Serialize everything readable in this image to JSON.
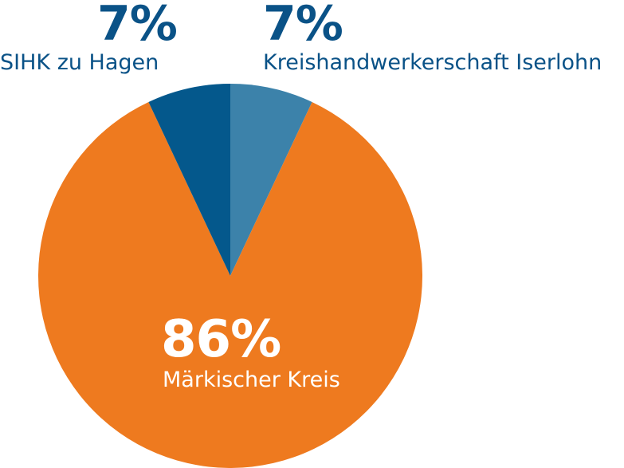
{
  "chart_data": {
    "type": "pie",
    "slices": [
      {
        "label": "Kreishandwerkerschaft Iserlohn",
        "value": 7,
        "value_label": "7%",
        "color": "#3c82aa"
      },
      {
        "label": "Märkischer Kreis",
        "value": 86,
        "value_label": "86%",
        "color": "#ee7a1f"
      },
      {
        "label": "SIHK zu Hagen",
        "value": 7,
        "value_label": "7%",
        "color": "#04588c"
      }
    ],
    "start_angle_deg": 0,
    "direction": "clockwise",
    "legend": "none"
  },
  "colors": {
    "label_blue": "#0a5287",
    "label_white": "#ffffff"
  }
}
